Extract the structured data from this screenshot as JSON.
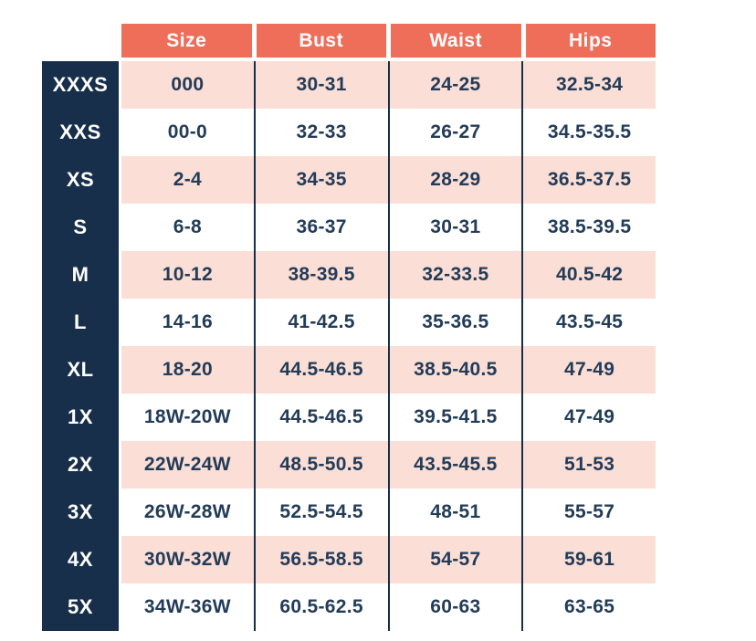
{
  "chart_data": {
    "type": "table",
    "title": "",
    "columns": [
      "Size",
      "Bust",
      "Waist",
      "Hips"
    ],
    "rows": [
      {
        "label": "XXXS",
        "size": "000",
        "bust": "30-31",
        "waist": "24-25",
        "hips": "32.5-34"
      },
      {
        "label": "XXS",
        "size": "00-0",
        "bust": "32-33",
        "waist": "26-27",
        "hips": "34.5-35.5"
      },
      {
        "label": "XS",
        "size": "2-4",
        "bust": "34-35",
        "waist": "28-29",
        "hips": "36.5-37.5"
      },
      {
        "label": "S",
        "size": "6-8",
        "bust": "36-37",
        "waist": "30-31",
        "hips": "38.5-39.5"
      },
      {
        "label": "M",
        "size": "10-12",
        "bust": "38-39.5",
        "waist": "32-33.5",
        "hips": "40.5-42"
      },
      {
        "label": "L",
        "size": "14-16",
        "bust": "41-42.5",
        "waist": "35-36.5",
        "hips": "43.5-45"
      },
      {
        "label": "XL",
        "size": "18-20",
        "bust": "44.5-46.5",
        "waist": "38.5-40.5",
        "hips": "47-49"
      },
      {
        "label": "1X",
        "size": "18W-20W",
        "bust": "44.5-46.5",
        "waist": "39.5-41.5",
        "hips": "47-49"
      },
      {
        "label": "2X",
        "size": "22W-24W",
        "bust": "48.5-50.5",
        "waist": "43.5-45.5",
        "hips": "51-53"
      },
      {
        "label": "3X",
        "size": "26W-28W",
        "bust": "52.5-54.5",
        "waist": "48-51",
        "hips": "55-57"
      },
      {
        "label": "4X",
        "size": "30W-32W",
        "bust": "56.5-58.5",
        "waist": "54-57",
        "hips": "59-61"
      },
      {
        "label": "5X",
        "size": "34W-36W",
        "bust": "60.5-62.5",
        "waist": "60-63",
        "hips": "63-65"
      }
    ],
    "layout_hints": {
      "row_striping": "odd rows pink, even rows white",
      "row_label_column": "dark navy block left of table body",
      "header_position": "top"
    }
  },
  "colors": {
    "header_bg": "#EE6E5A",
    "header_text": "#FFFFFF",
    "row_label_bg": "#172F4B",
    "row_label_text": "#FFFFFF",
    "row_stripe_bg": "#FBDED6",
    "row_plain_bg": "#FFFFFF",
    "cell_text": "#233C58",
    "divider_line": "#172F4B"
  }
}
